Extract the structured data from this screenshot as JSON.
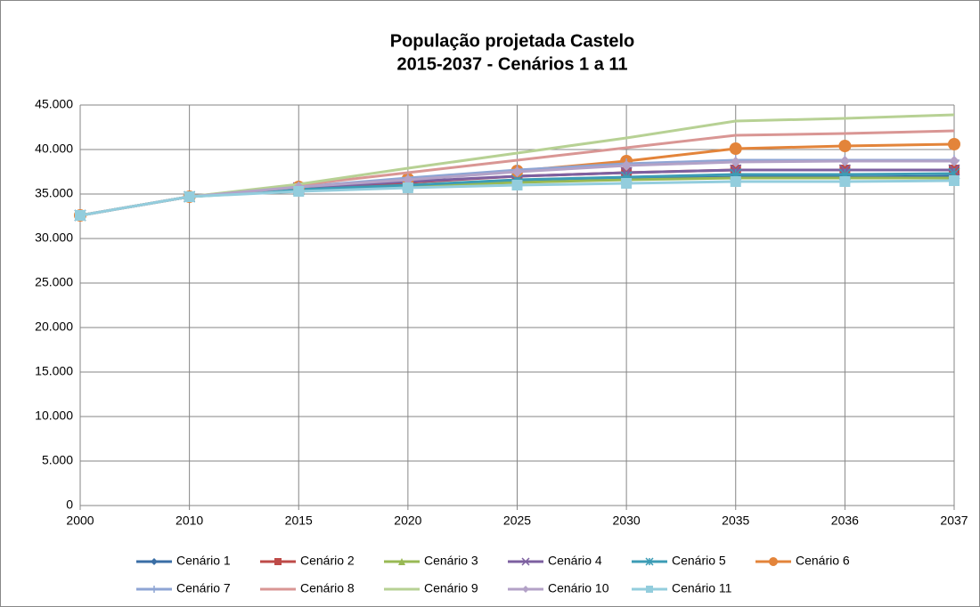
{
  "chart_data": {
    "type": "line",
    "title": [
      "População projetada Castelo",
      "2015-2037 - Cenários 1 a 11"
    ],
    "categories": [
      "2000",
      "2010",
      "2015",
      "2020",
      "2025",
      "2030",
      "2035",
      "2036",
      "2037"
    ],
    "ylim": [
      0,
      45000
    ],
    "yticks": [
      0,
      {
        "value": 5000,
        "label": "5.000"
      },
      {
        "value": 10000,
        "label": "10.000"
      },
      {
        "value": 15000,
        "label": "15.000"
      },
      {
        "value": 20000,
        "label": "20.000"
      },
      {
        "value": 25000,
        "label": "25.000"
      },
      {
        "value": 30000,
        "label": "30.000"
      },
      {
        "value": 35000,
        "label": "35.000"
      },
      {
        "value": 40000,
        "label": "40.000"
      },
      {
        "value": 45000,
        "label": "45.000"
      }
    ],
    "grid": true,
    "legend": "bottom",
    "series": [
      {
        "name": "Cenário 1",
        "color": "#3a6ea5",
        "marker": "diamond",
        "values": [
          32600,
          34700,
          35500,
          36000,
          36400,
          36700,
          36900,
          36900,
          37000
        ]
      },
      {
        "name": "Cenário 2",
        "color": "#be4b48",
        "marker": "square",
        "values": [
          32600,
          34700,
          35600,
          36300,
          37000,
          37400,
          37700,
          37700,
          37700
        ]
      },
      {
        "name": "Cenário 3",
        "color": "#98b954",
        "marker": "triangle",
        "values": [
          32600,
          34700,
          35400,
          35900,
          36300,
          36600,
          36800,
          36800,
          36800
        ]
      },
      {
        "name": "Cenário 4",
        "color": "#7d60a0",
        "marker": "x",
        "values": [
          32600,
          34700,
          35700,
          36400,
          37000,
          37400,
          37700,
          37700,
          37700
        ]
      },
      {
        "name": "Cenário 5",
        "color": "#3c9cb5",
        "marker": "star",
        "values": [
          32600,
          34700,
          35500,
          36000,
          36600,
          36900,
          37200,
          37200,
          37300
        ]
      },
      {
        "name": "Cenário 6",
        "color": "#e3843a",
        "marker": "circle",
        "values": [
          32600,
          34700,
          35800,
          36700,
          37600,
          38700,
          40100,
          40400,
          40600
        ]
      },
      {
        "name": "Cenário 7",
        "color": "#8ea5d4",
        "marker": "plus",
        "values": [
          32600,
          34700,
          35800,
          36800,
          37700,
          38400,
          38800,
          38800,
          38800
        ]
      },
      {
        "name": "Cenário 8",
        "color": "#d99694",
        "marker": "none",
        "values": [
          32600,
          34700,
          36000,
          37400,
          38800,
          40200,
          41600,
          41800,
          42100
        ]
      },
      {
        "name": "Cenário 9",
        "color": "#b7d194",
        "marker": "none",
        "values": [
          32600,
          34700,
          36100,
          37900,
          39600,
          41300,
          43200,
          43500,
          43900
        ]
      },
      {
        "name": "Cenário 10",
        "color": "#b3a2c7",
        "marker": "diamond",
        "values": [
          32600,
          34700,
          35800,
          36600,
          37500,
          38200,
          38600,
          38700,
          38700
        ]
      },
      {
        "name": "Cenário 11",
        "color": "#93cddd",
        "marker": "square",
        "values": [
          32600,
          34700,
          35300,
          35700,
          36000,
          36200,
          36400,
          36400,
          36500
        ]
      }
    ]
  }
}
